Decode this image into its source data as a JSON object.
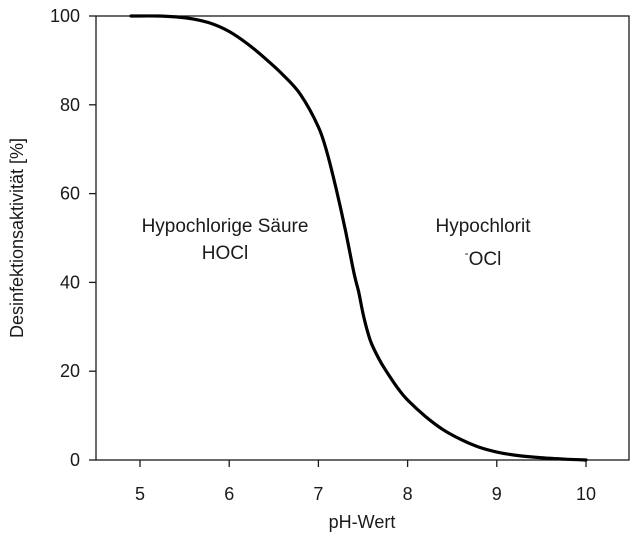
{
  "chart_data": {
    "type": "line",
    "title": "",
    "xlabel": "pH-Wert",
    "ylabel": "Desinfektionsaktivität [%]",
    "xlim": [
      4.5,
      10.5
    ],
    "ylim": [
      0,
      100
    ],
    "x_ticks": [
      5,
      6,
      7,
      8,
      9,
      10
    ],
    "y_ticks": [
      0,
      20,
      40,
      60,
      80,
      100
    ],
    "x_tick_labels": [
      "5",
      "6",
      "7",
      "8",
      "9",
      "10"
    ],
    "y_tick_labels": [
      "0",
      "20",
      "40",
      "60",
      "80",
      "100"
    ],
    "grid": false,
    "legend": "none",
    "line_color": "#000000",
    "series": [
      {
        "x": [
          4.9,
          5.2,
          5.4,
          5.6,
          5.8,
          6.0,
          6.2,
          6.4,
          6.6,
          6.8,
          7.0,
          7.1,
          7.2,
          7.3,
          7.4,
          7.45,
          7.5,
          7.55,
          7.6,
          7.7,
          7.8,
          7.9,
          8.0,
          8.2,
          8.4,
          8.6,
          8.8,
          9.0,
          9.2,
          9.5,
          9.8,
          10.0
        ],
        "y": [
          100,
          100,
          99.8,
          99.3,
          98.3,
          96.5,
          93.8,
          90.5,
          86.8,
          82.3,
          75,
          69,
          61,
          52,
          42,
          38,
          33,
          29,
          26,
          22,
          18.8,
          15.9,
          13.5,
          9.8,
          6.8,
          4.6,
          2.9,
          1.8,
          1.1,
          0.5,
          0.15,
          0
        ]
      }
    ],
    "annotations": [
      {
        "lines": [
          "Hypochlorige Säure",
          "HOCl"
        ],
        "x": 6.0,
        "y": 55
      },
      {
        "lines": [
          "Hypochlorit",
          "OCl"
        ],
        "superscript": "-",
        "x": 8.75,
        "y": 55
      }
    ]
  }
}
